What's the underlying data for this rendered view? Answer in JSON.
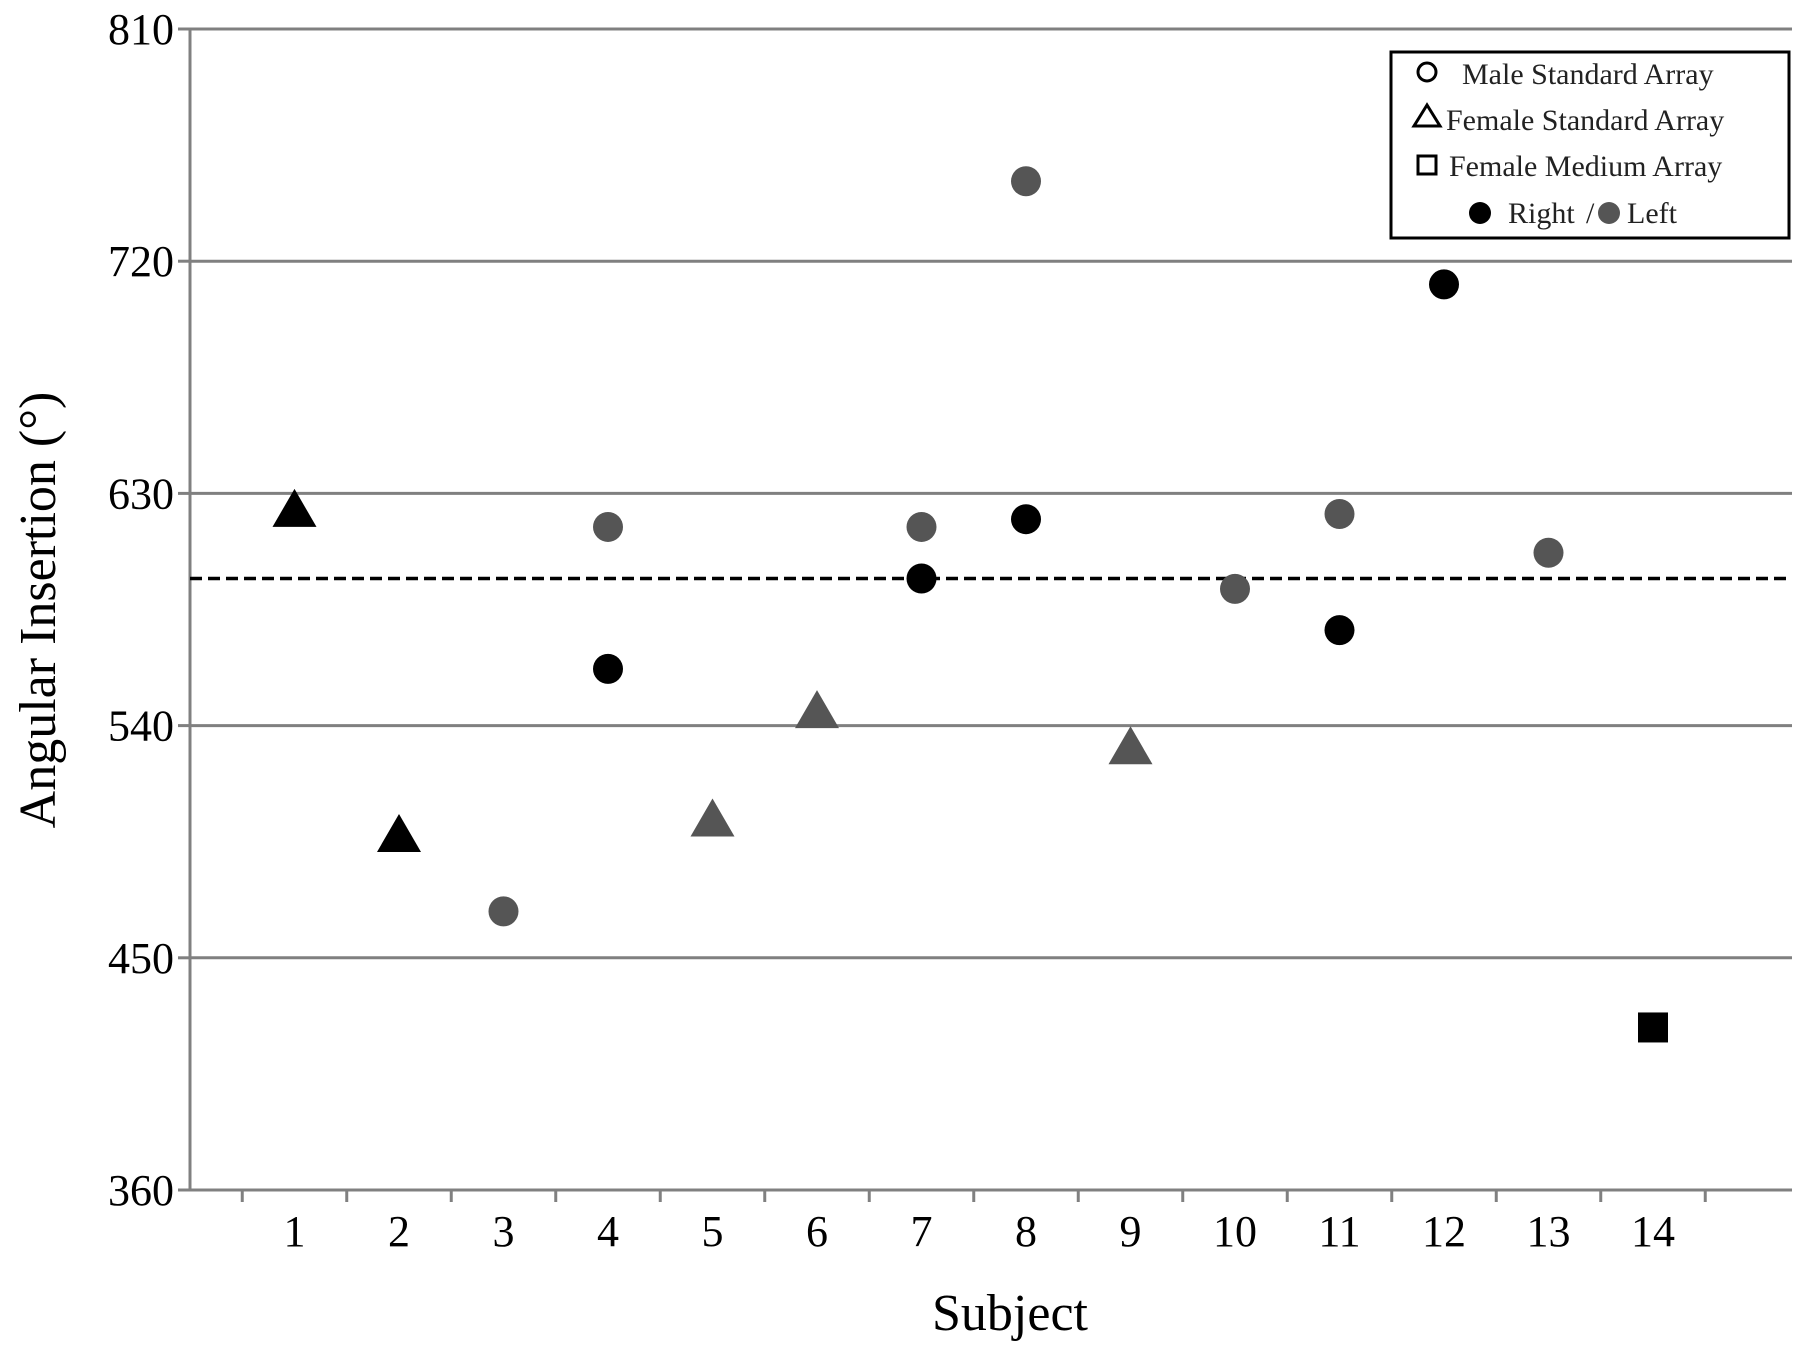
{
  "chart_data": {
    "type": "scatter",
    "xlabel": "Subject",
    "ylabel": "Angular Insertion (°)",
    "xlim": [
      0,
      14.95
    ],
    "ylim": [
      360,
      810
    ],
    "x_ticks": [
      1,
      2,
      3,
      4,
      5,
      6,
      7,
      8,
      9,
      10,
      11,
      12,
      13,
      14
    ],
    "y_ticks": [
      360,
      450,
      540,
      630,
      720,
      810
    ],
    "grid": "horizontal",
    "legend_position": "top-right",
    "reference_line": {
      "y": 597,
      "style": "dashed"
    },
    "legend": {
      "items": [
        {
          "shape": "circle",
          "label": "Male Standard Array"
        },
        {
          "shape": "triangle",
          "label": "Female Standard Array"
        },
        {
          "shape": "square",
          "label": "Female Medium Array"
        }
      ],
      "side_right": "Right",
      "separator": "/",
      "side_left": "Left"
    },
    "colors": {
      "right": "#000000",
      "left": "#555555",
      "grid": "#808080"
    },
    "points": [
      {
        "subject": 1,
        "value": 624,
        "shape": "triangle",
        "side": "right"
      },
      {
        "subject": 2,
        "value": 498,
        "shape": "triangle",
        "side": "right"
      },
      {
        "subject": 3,
        "value": 468,
        "shape": "circle",
        "side": "left"
      },
      {
        "subject": 4,
        "value": 562,
        "shape": "circle",
        "side": "right"
      },
      {
        "subject": 4,
        "value": 617,
        "shape": "circle",
        "side": "left"
      },
      {
        "subject": 5,
        "value": 504,
        "shape": "triangle",
        "side": "left"
      },
      {
        "subject": 6,
        "value": 546,
        "shape": "triangle",
        "side": "left"
      },
      {
        "subject": 7,
        "value": 597,
        "shape": "circle",
        "side": "right"
      },
      {
        "subject": 7,
        "value": 617,
        "shape": "circle",
        "side": "left"
      },
      {
        "subject": 8,
        "value": 620,
        "shape": "circle",
        "side": "right"
      },
      {
        "subject": 8,
        "value": 751,
        "shape": "circle",
        "side": "left"
      },
      {
        "subject": 9,
        "value": 532,
        "shape": "triangle",
        "side": "left"
      },
      {
        "subject": 10,
        "value": 593,
        "shape": "circle",
        "side": "left"
      },
      {
        "subject": 11,
        "value": 577,
        "shape": "circle",
        "side": "right"
      },
      {
        "subject": 11,
        "value": 622,
        "shape": "circle",
        "side": "left"
      },
      {
        "subject": 12,
        "value": 711,
        "shape": "circle",
        "side": "right"
      },
      {
        "subject": 13,
        "value": 607,
        "shape": "circle",
        "side": "left"
      },
      {
        "subject": 14,
        "value": 423,
        "shape": "square",
        "side": "right"
      }
    ]
  }
}
